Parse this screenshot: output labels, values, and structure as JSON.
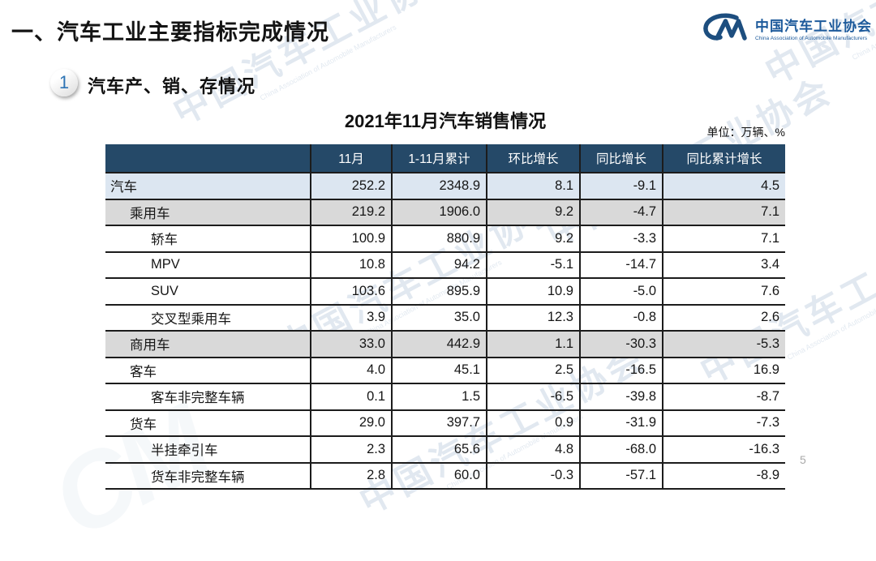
{
  "page": {
    "title": "一、汽车工业主要指标完成情况",
    "page_number": "5"
  },
  "logo": {
    "mark": "CM",
    "name_cn": "中国汽车工业协会",
    "name_en": "China Association of Automobile Manufacturers",
    "color": "#1d5a9b"
  },
  "section": {
    "number": "1",
    "label": "汽车产、销、存情况"
  },
  "watermark": {
    "text": "中国汽车工业协会",
    "subtext": "China Association of Automobile Manufacturers"
  },
  "table": {
    "title": "2021年11月汽车销售情况",
    "unit_label": "单位：万辆、%",
    "header_bg": "#254968",
    "highlight_bg": "#DCE6F1",
    "subtotal_bg": "#D9D9D9",
    "columns": [
      "",
      "11月",
      "1-11月累计",
      "环比增长",
      "同比增长",
      "同比累计增长"
    ],
    "rows": [
      {
        "label": "汽车",
        "indent": 0,
        "style": "highlight",
        "values": [
          "252.2",
          "2348.9",
          "8.1",
          "-9.1",
          "4.5"
        ]
      },
      {
        "label": "乘用车",
        "indent": 1,
        "style": "subtotal",
        "values": [
          "219.2",
          "1906.0",
          "9.2",
          "-4.7",
          "7.1"
        ]
      },
      {
        "label": "轿车",
        "indent": 2,
        "style": "plain",
        "values": [
          "100.9",
          "880.9",
          "9.2",
          "-3.3",
          "7.1"
        ]
      },
      {
        "label": "MPV",
        "indent": 2,
        "style": "plain",
        "values": [
          "10.8",
          "94.2",
          "-5.1",
          "-14.7",
          "3.4"
        ]
      },
      {
        "label": "SUV",
        "indent": 2,
        "style": "plain",
        "values": [
          "103.6",
          "895.9",
          "10.9",
          "-5.0",
          "7.6"
        ]
      },
      {
        "label": "交叉型乘用车",
        "indent": 2,
        "style": "plain",
        "values": [
          "3.9",
          "35.0",
          "12.3",
          "-0.8",
          "2.6"
        ]
      },
      {
        "label": "商用车",
        "indent": 1,
        "style": "subtotal",
        "values": [
          "33.0",
          "442.9",
          "1.1",
          "-30.3",
          "-5.3"
        ]
      },
      {
        "label": "客车",
        "indent": 1,
        "style": "plain",
        "values": [
          "4.0",
          "45.1",
          "2.5",
          "-16.5",
          "16.9"
        ]
      },
      {
        "label": "客车非完整车辆",
        "indent": 2,
        "style": "plain",
        "values": [
          "0.1",
          "1.5",
          "-6.5",
          "-39.8",
          "-8.7"
        ]
      },
      {
        "label": "货车",
        "indent": 1,
        "style": "plain",
        "values": [
          "29.0",
          "397.7",
          "0.9",
          "-31.9",
          "-7.3"
        ]
      },
      {
        "label": "半挂牵引车",
        "indent": 2,
        "style": "plain",
        "values": [
          "2.3",
          "65.6",
          "4.8",
          "-68.0",
          "-16.3"
        ]
      },
      {
        "label": "货车非完整车辆",
        "indent": 2,
        "style": "plain",
        "values": [
          "2.8",
          "60.0",
          "-0.3",
          "-57.1",
          "-8.9"
        ]
      }
    ]
  }
}
